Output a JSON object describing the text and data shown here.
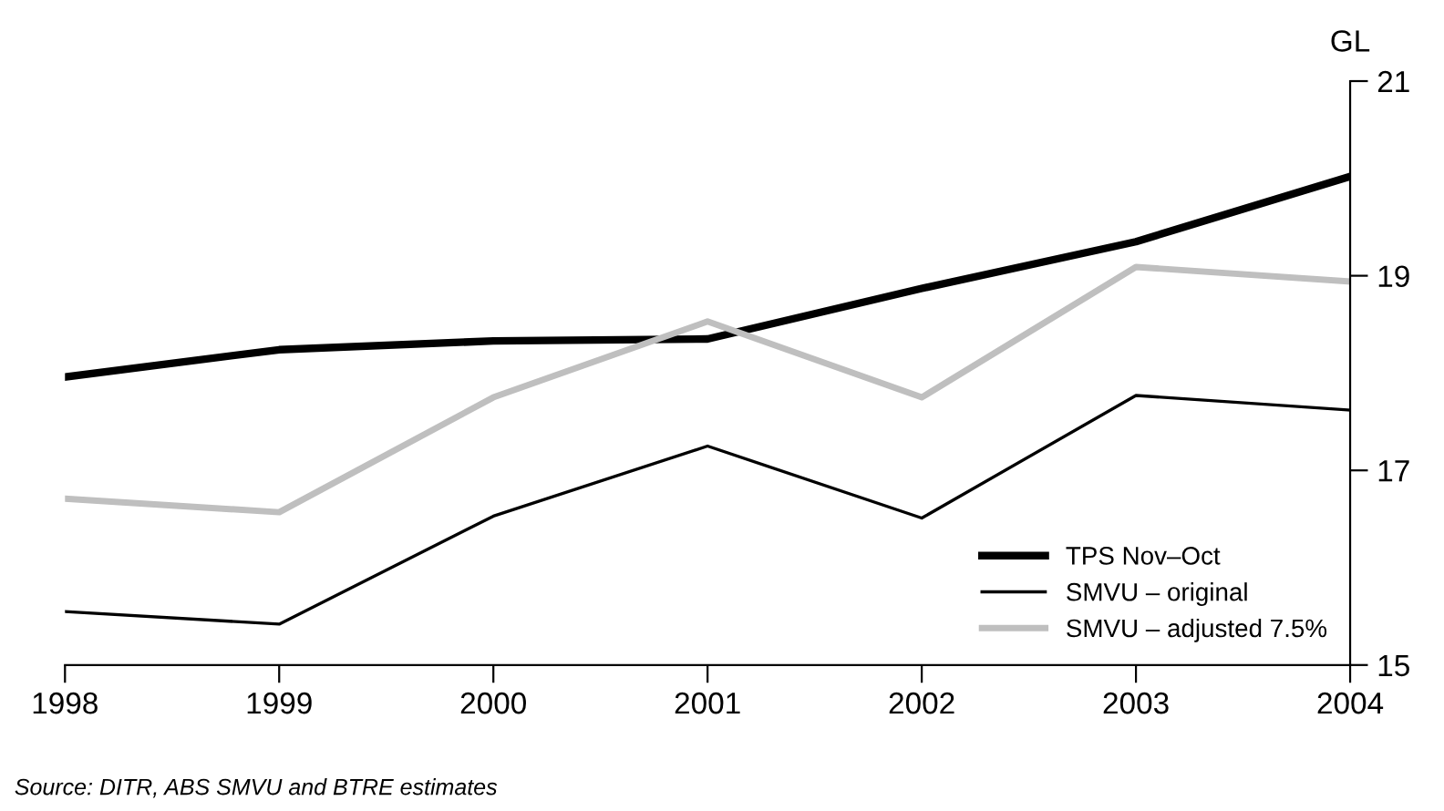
{
  "chart_data": {
    "type": "line",
    "ylabel": "GL",
    "x": [
      1998,
      1999,
      2000,
      2001,
      2002,
      2003,
      2004
    ],
    "series": [
      {
        "name": "TPS Nov–Oct",
        "color": "#000000",
        "values": [
          17.96,
          18.24,
          18.33,
          18.35,
          18.87,
          19.35,
          20.02
        ]
      },
      {
        "name": "SMVU – original",
        "color": "#000000",
        "values": [
          15.55,
          15.42,
          16.53,
          17.25,
          16.51,
          17.77,
          17.62
        ]
      },
      {
        "name": "SMVU – adjusted 7.5%",
        "color": "#bfbfbf",
        "values": [
          16.71,
          16.57,
          17.75,
          18.53,
          17.75,
          19.09,
          18.94
        ]
      }
    ],
    "xlim": [
      1998,
      2004
    ],
    "xticks": [
      1998,
      1999,
      2000,
      2001,
      2002,
      2003,
      2004
    ],
    "ylim": [
      15,
      21
    ],
    "yticks": [
      15,
      17,
      19,
      21
    ],
    "grid": false,
    "legend": "bottom right",
    "marker": "none",
    "line_style": "solid",
    "annotations": [
      "Source: DITR, ABS SMVU and BTRE estimates"
    ]
  }
}
